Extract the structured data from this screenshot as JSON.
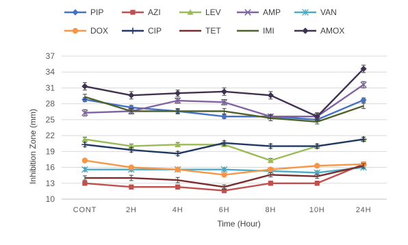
{
  "chart_data": {
    "type": "line",
    "title": "",
    "xlabel": "Time (Hour)",
    "ylabel": "Inhibition Zone (mm)",
    "ylim": [
      10,
      37
    ],
    "yticks": [
      10,
      13,
      16,
      19,
      22,
      25,
      28,
      31,
      34,
      37
    ],
    "grid": "horizontal",
    "legend_position": "top",
    "categories": [
      "CONT",
      "2H",
      "4H",
      "6H",
      "8H",
      "10H",
      "24H"
    ],
    "series": [
      {
        "name": "PIP",
        "color": "#4472C4",
        "marker": "diamond",
        "values": [
          28.8,
          27.3,
          26.6,
          25.6,
          25.6,
          25.0,
          28.7
        ],
        "errors": [
          0.4,
          0.4,
          0.4,
          0.4,
          0.4,
          0.4,
          0.4
        ]
      },
      {
        "name": "AZI",
        "color": "#C0504D",
        "marker": "square",
        "values": [
          13.0,
          12.3,
          12.3,
          11.6,
          13.0,
          13.0,
          16.6
        ],
        "errors": [
          0.4,
          0.4,
          0.4,
          0.4,
          0.4,
          0.4,
          0.4
        ]
      },
      {
        "name": "LEV",
        "color": "#9BBB59",
        "marker": "triangle",
        "values": [
          21.3,
          20.0,
          20.3,
          20.3,
          17.3,
          20.0,
          21.3
        ],
        "errors": [
          0.4,
          0.4,
          0.4,
          0.4,
          0.4,
          0.4,
          0.4
        ]
      },
      {
        "name": "AMP",
        "color": "#8064A2",
        "marker": "x",
        "values": [
          26.3,
          26.6,
          28.6,
          28.3,
          25.6,
          25.6,
          31.6
        ],
        "errors": [
          0.6,
          0.5,
          0.5,
          0.5,
          0.4,
          0.6,
          0.6
        ]
      },
      {
        "name": "VAN",
        "color": "#4BACC6",
        "marker": "star",
        "values": [
          15.6,
          15.6,
          15.6,
          15.6,
          15.3,
          15.0,
          16.0
        ],
        "errors": [
          0.3,
          0.3,
          0.3,
          0.3,
          0.3,
          0.3,
          0.3
        ]
      },
      {
        "name": "DOX",
        "color": "#F79646",
        "marker": "circle",
        "values": [
          17.3,
          16.0,
          15.6,
          14.6,
          15.6,
          16.3,
          16.6
        ],
        "errors": [
          0.3,
          0.3,
          0.3,
          0.3,
          0.3,
          0.3,
          0.3
        ]
      },
      {
        "name": "CIP",
        "color": "#1F3864",
        "marker": "plus",
        "values": [
          20.3,
          19.3,
          18.6,
          20.6,
          20.0,
          20.0,
          21.3
        ],
        "errors": [
          0.4,
          0.4,
          0.4,
          0.4,
          0.4,
          0.4,
          0.4
        ]
      },
      {
        "name": "TET",
        "color": "#7B2C2C",
        "marker": "none",
        "values": [
          14.0,
          14.0,
          13.6,
          12.3,
          14.6,
          14.3,
          16.3
        ],
        "errors": [
          0.4,
          0.5,
          0.5,
          0.4,
          0.4,
          0.4,
          0.4
        ]
      },
      {
        "name": "IMI",
        "color": "#4F6228",
        "marker": "none",
        "values": [
          29.3,
          26.6,
          26.6,
          26.6,
          25.3,
          24.6,
          27.6
        ],
        "errors": [
          0.5,
          0.5,
          0.5,
          0.5,
          0.5,
          0.4,
          0.5
        ]
      },
      {
        "name": "AMOX",
        "color": "#403151",
        "marker": "diamond",
        "values": [
          31.3,
          29.6,
          30.0,
          30.3,
          29.6,
          25.6,
          34.6
        ],
        "errors": [
          0.7,
          0.7,
          0.6,
          0.7,
          0.7,
          0.7,
          0.7
        ]
      }
    ]
  }
}
